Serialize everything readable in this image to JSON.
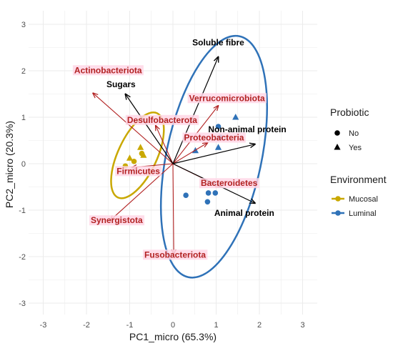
{
  "chart_data": {
    "type": "scatter",
    "subtype": "pca-biplot",
    "xlabel": "PC1_micro (65.3%)",
    "ylabel": "PC2_micro (20.3%)",
    "xlim": [
      -3.3,
      3.3
    ],
    "ylim": [
      -3.2,
      3.2
    ],
    "x_ticks": [
      "-3",
      "-2",
      "-1",
      "0",
      "1",
      "2",
      "3"
    ],
    "y_ticks": [
      "-3",
      "-2",
      "-1",
      "0",
      "1",
      "2",
      "3"
    ],
    "grid": true,
    "legends": [
      {
        "title": "Probiotic",
        "entries": [
          {
            "label": "No",
            "shape": "circle"
          },
          {
            "label": "Yes",
            "shape": "triangle"
          }
        ]
      },
      {
        "title": "Environment",
        "entries": [
          {
            "label": "Mucosal",
            "color": "#c9a800"
          },
          {
            "label": "Luminal",
            "color": "#2f72b8"
          }
        ]
      }
    ],
    "legend_position": "right",
    "colors": {
      "Mucosal": "#c9a800",
      "Luminal": "#2f72b8",
      "bacteria": "#b22222",
      "diet": "#000000",
      "label_bg": "#ffd7e6"
    },
    "points": [
      {
        "x": -1.1,
        "y": -0.05,
        "env": "Mucosal",
        "probiotic": "No"
      },
      {
        "x": -0.9,
        "y": 0.05,
        "env": "Mucosal",
        "probiotic": "No"
      },
      {
        "x": -0.72,
        "y": 0.22,
        "env": "Mucosal",
        "probiotic": "No"
      },
      {
        "x": -1.0,
        "y": 0.12,
        "env": "Mucosal",
        "probiotic": "Yes"
      },
      {
        "x": -0.75,
        "y": 0.35,
        "env": "Mucosal",
        "probiotic": "Yes"
      },
      {
        "x": -0.68,
        "y": 0.18,
        "env": "Mucosal",
        "probiotic": "Yes"
      },
      {
        "x": 1.05,
        "y": 0.8,
        "env": "Luminal",
        "probiotic": "No"
      },
      {
        "x": 1.1,
        "y": 0.57,
        "env": "Luminal",
        "probiotic": "No"
      },
      {
        "x": 0.98,
        "y": -0.63,
        "env": "Luminal",
        "probiotic": "No"
      },
      {
        "x": 0.82,
        "y": -0.63,
        "env": "Luminal",
        "probiotic": "No"
      },
      {
        "x": 0.3,
        "y": -0.68,
        "env": "Luminal",
        "probiotic": "No"
      },
      {
        "x": 0.8,
        "y": -0.82,
        "env": "Luminal",
        "probiotic": "No"
      },
      {
        "x": 1.45,
        "y": 1.0,
        "env": "Luminal",
        "probiotic": "Yes"
      },
      {
        "x": 0.52,
        "y": 0.28,
        "env": "Luminal",
        "probiotic": "Yes"
      },
      {
        "x": 1.05,
        "y": 0.35,
        "env": "Luminal",
        "probiotic": "Yes"
      }
    ],
    "ellipses": [
      {
        "group": "Mucosal",
        "cx": -0.82,
        "cy": 0.18,
        "rx": 0.45,
        "ry": 1.0,
        "angle": 25
      },
      {
        "group": "Luminal",
        "cx": 0.95,
        "cy": 0.15,
        "rx": 1.1,
        "ry": 2.65,
        "angle": 12
      }
    ],
    "loadings": [
      {
        "name": "Actinobacteriota",
        "x": -1.85,
        "y": 1.52,
        "group": "bacteria"
      },
      {
        "name": "Verrucomicrobiota",
        "x": 1.05,
        "y": 1.25,
        "group": "bacteria"
      },
      {
        "name": "Desulfobacterota",
        "x": -0.4,
        "y": 0.82,
        "group": "bacteria"
      },
      {
        "name": "Proteobacteria",
        "x": 0.8,
        "y": 0.45,
        "group": "bacteria"
      },
      {
        "name": "Firmicutes",
        "x": -0.95,
        "y": -0.08,
        "group": "bacteria"
      },
      {
        "name": "Bacteroidetes",
        "x": 1.1,
        "y": -0.5,
        "group": "bacteria"
      },
      {
        "name": "Synergistota",
        "x": -1.45,
        "y": -1.22,
        "group": "bacteria"
      },
      {
        "name": "Fusobacteriota",
        "x": 0.02,
        "y": -1.95,
        "group": "bacteria"
      },
      {
        "name": "Soluble fibre",
        "x": 1.05,
        "y": 2.3,
        "group": "diet"
      },
      {
        "name": "Sugars",
        "x": -1.1,
        "y": 1.5,
        "group": "diet"
      },
      {
        "name": "Non-animal protein",
        "x": 1.9,
        "y": 0.42,
        "group": "diet"
      },
      {
        "name": "Animal protein",
        "x": 1.9,
        "y": -0.85,
        "group": "diet"
      }
    ]
  }
}
